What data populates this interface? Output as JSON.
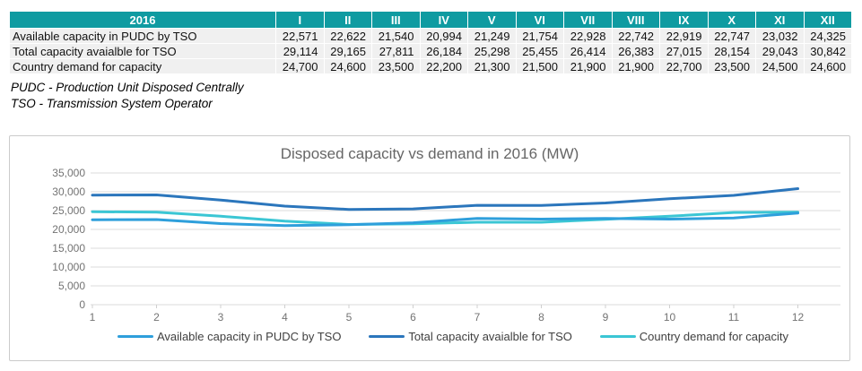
{
  "table": {
    "year_header": "2016",
    "header_bg": "#0F9BA1",
    "months": [
      "I",
      "II",
      "III",
      "IV",
      "V",
      "VI",
      "VII",
      "VIII",
      "IX",
      "X",
      "XI",
      "XII"
    ],
    "rows": [
      {
        "label": "Available capacity in PUDC by TSO",
        "values": [
          "22,571",
          "22,622",
          "21,540",
          "20,994",
          "21,249",
          "21,754",
          "22,928",
          "22,742",
          "22,919",
          "22,747",
          "23,032",
          "24,325"
        ]
      },
      {
        "label": "Total capacity avaialble for TSO",
        "values": [
          "29,114",
          "29,165",
          "27,811",
          "26,184",
          "25,298",
          "25,455",
          "26,414",
          "26,383",
          "27,015",
          "28,154",
          "29,043",
          "30,842"
        ]
      },
      {
        "label": "Country demand for capacity",
        "values": [
          "24,700",
          "24,600",
          "23,500",
          "22,200",
          "21,300",
          "21,500",
          "21,900",
          "21,900",
          "22,700",
          "23,500",
          "24,500",
          "24,600"
        ]
      }
    ]
  },
  "footnotes": [
    "PUDC - Production Unit Disposed Centrally",
    "TSO - Transmission System Operator"
  ],
  "chart_data": {
    "type": "line",
    "title": "Disposed capacity vs demand in 2016 (MW)",
    "x": [
      1,
      2,
      3,
      4,
      5,
      6,
      7,
      8,
      9,
      10,
      11,
      12
    ],
    "series": [
      {
        "name": "Available capacity in PUDC by TSO",
        "color": "#2E9FDB",
        "values": [
          22571,
          22622,
          21540,
          20994,
          21249,
          21754,
          22928,
          22742,
          22919,
          22747,
          23032,
          24325
        ]
      },
      {
        "name": "Total capacity avaialble for TSO",
        "color": "#2B76BC",
        "values": [
          29114,
          29165,
          27811,
          26184,
          25298,
          25455,
          26414,
          26383,
          27015,
          28154,
          29043,
          30842
        ]
      },
      {
        "name": "Country demand for capacity",
        "color": "#3BC6D4",
        "values": [
          24700,
          24600,
          23500,
          22200,
          21300,
          21500,
          21900,
          21900,
          22700,
          23500,
          24500,
          24600
        ]
      }
    ],
    "ylim": [
      0,
      35000
    ],
    "ytick_step": 5000,
    "ytick_labels": [
      "0",
      "5,000",
      "10,000",
      "15,000",
      "20,000",
      "25,000",
      "30,000",
      "35,000"
    ],
    "grid": true,
    "legend_position": "bottom",
    "axis_text_color": "#737373",
    "grid_color": "#DBDBDB"
  }
}
